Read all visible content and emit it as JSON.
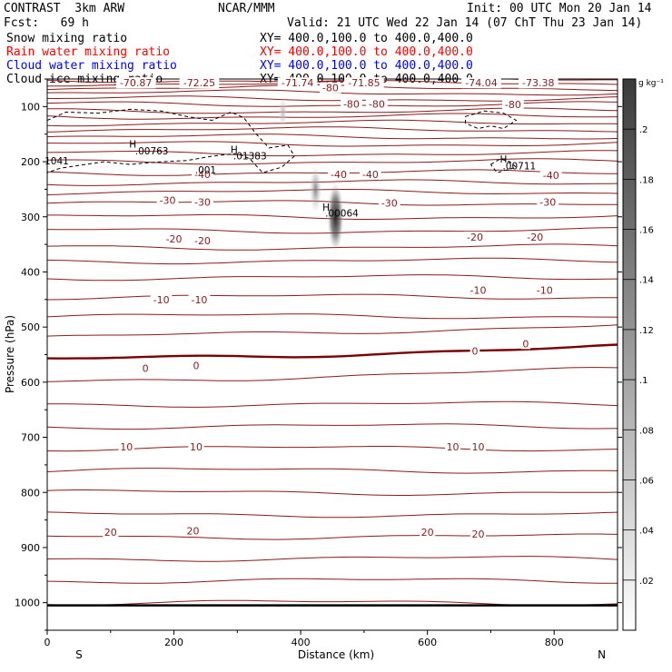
{
  "header": {
    "model": "CONTRAST  3km ARW",
    "org": "NCAR/MMM",
    "init": "Init: 00 UTC Mon 20 Jan 14",
    "fcst": "Fcst:   69 h",
    "valid": "Valid: 21 UTC Wed 22 Jan 14 (07 ChT Thu 23 Jan 14)",
    "fields": [
      {
        "name": "Snow mixing ratio",
        "xy": "XY= 400.0,100.0 to 400.0,400.0",
        "color": "#000000"
      },
      {
        "name": "Rain water mixing ratio",
        "xy": "XY= 400.0,100.0 to 400.0,400.0",
        "color": "#ff0000"
      },
      {
        "name": "Cloud water mixing ratio",
        "xy": "XY= 400.0,100.0 to 400.0,400.0",
        "color": "#0000ff"
      },
      {
        "name": "Cloud ice mixing ratio",
        "xy": "XY= 400.0,100.0 to 400.0,400.0",
        "color": "#000000"
      }
    ]
  },
  "colors": {
    "isotherm": "#8b1a1a",
    "zero_line": "#7a0000",
    "terrain": "#000000"
  },
  "chart_data": {
    "type": "cross-section",
    "xlabel": "Distance (km)",
    "ylabel": "Pressure (hPa)",
    "xlim": [
      0,
      900
    ],
    "ylim": [
      1050,
      50
    ],
    "x_ticks": [
      "0",
      "200",
      "400",
      "600",
      "800"
    ],
    "y_ticks": [
      "100",
      "200",
      "300",
      "400",
      "500",
      "600",
      "700",
      "800",
      "900",
      "1000"
    ],
    "endpoints": {
      "left": "S",
      "right": "N"
    },
    "colorbar": {
      "unit": "g kg⁻¹",
      "ticks": [
        ".02",
        ".04",
        ".06",
        ".08",
        ".1",
        ".12",
        ".14",
        ".16",
        ".18",
        ".2"
      ],
      "range": [
        0,
        0.22
      ]
    },
    "temperature_labels": [
      {
        "text": "-70.87",
        "x": 140,
        "p": 57
      },
      {
        "text": "-72.25",
        "x": 240,
        "p": 57
      },
      {
        "text": "-71.74",
        "x": 395,
        "p": 57
      },
      {
        "text": "-71.85",
        "x": 500,
        "p": 57
      },
      {
        "text": "-74.04",
        "x": 685,
        "p": 57
      },
      {
        "text": "-73.38",
        "x": 775,
        "p": 57
      },
      {
        "text": "-80",
        "x": 447,
        "p": 66
      },
      {
        "text": "-80",
        "x": 480,
        "p": 95
      },
      {
        "text": "-80",
        "x": 520,
        "p": 95
      },
      {
        "text": "-80",
        "x": 735,
        "p": 96
      },
      {
        "text": "-40",
        "x": 245,
        "p": 223
      },
      {
        "text": "-40",
        "x": 460,
        "p": 223
      },
      {
        "text": "-40",
        "x": 510,
        "p": 223
      },
      {
        "text": "-40",
        "x": 795,
        "p": 225
      },
      {
        "text": "-30",
        "x": 190,
        "p": 270
      },
      {
        "text": "-30",
        "x": 245,
        "p": 273
      },
      {
        "text": "-30",
        "x": 540,
        "p": 275
      },
      {
        "text": "-30",
        "x": 790,
        "p": 273
      },
      {
        "text": "-20",
        "x": 200,
        "p": 340
      },
      {
        "text": "-20",
        "x": 245,
        "p": 343
      },
      {
        "text": "-20",
        "x": 675,
        "p": 337
      },
      {
        "text": "-20",
        "x": 770,
        "p": 337
      },
      {
        "text": "-10",
        "x": 180,
        "p": 450
      },
      {
        "text": "-10",
        "x": 240,
        "p": 450
      },
      {
        "text": "-10",
        "x": 680,
        "p": 433
      },
      {
        "text": "-10",
        "x": 785,
        "p": 433
      },
      {
        "text": "0",
        "x": 155,
        "p": 575
      },
      {
        "text": "0",
        "x": 235,
        "p": 570
      },
      {
        "text": "0",
        "x": 675,
        "p": 543
      },
      {
        "text": "0",
        "x": 755,
        "p": 530
      },
      {
        "text": "10",
        "x": 125,
        "p": 717
      },
      {
        "text": "10",
        "x": 235,
        "p": 717
      },
      {
        "text": "10",
        "x": 640,
        "p": 717
      },
      {
        "text": "10",
        "x": 680,
        "p": 717
      },
      {
        "text": "20",
        "x": 100,
        "p": 872
      },
      {
        "text": "20",
        "x": 230,
        "p": 870
      },
      {
        "text": "20",
        "x": 600,
        "p": 872
      },
      {
        "text": "20",
        "x": 680,
        "p": 875
      }
    ],
    "extrema_labels": [
      {
        "text": "H",
        "x": 135,
        "p": 168
      },
      {
        "text": ".00763",
        "x": 165,
        "p": 180
      },
      {
        "text": "H",
        "x": 295,
        "p": 178
      },
      {
        "text": ".01383",
        "x": 320,
        "p": 189
      },
      {
        "text": ".001",
        "x": 250,
        "p": 215
      },
      {
        "text": "1041",
        "x": 15,
        "p": 198
      },
      {
        "text": "H",
        "x": 720,
        "p": 195
      },
      {
        "text": ".00711",
        "x": 745,
        "p": 207
      },
      {
        "text": "H",
        "x": 440,
        "p": 282
      },
      {
        "text": ".00064",
        "x": 465,
        "p": 293
      }
    ],
    "series": [
      {
        "kind": "isotherm_lines",
        "pressures": [
          52,
          58,
          66,
          75,
          86,
          96,
          108,
          118,
          130,
          142,
          155,
          168,
          185,
          200,
          220,
          238,
          255,
          275,
          300,
          325,
          355,
          380,
          410,
          445,
          480,
          520,
          560,
          600,
          640,
          680,
          720,
          760,
          800,
          840,
          880,
          920,
          960,
          1000
        ]
      },
      {
        "kind": "snow_max",
        "x": 455,
        "p": 300,
        "value": 0.2
      }
    ]
  }
}
